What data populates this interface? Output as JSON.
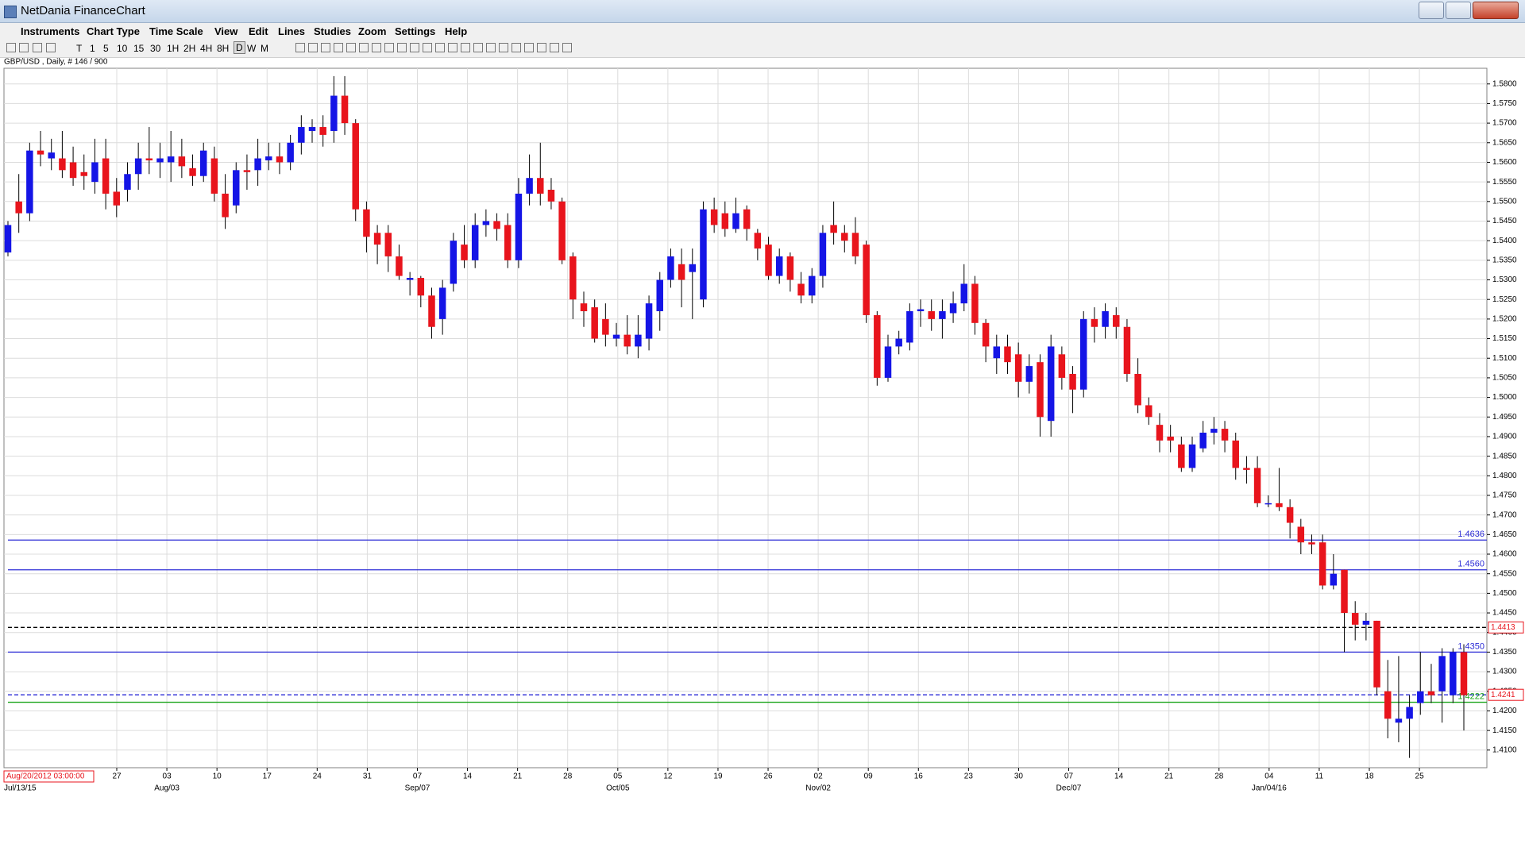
{
  "window": {
    "title": "NetDania FinanceChart"
  },
  "menu": [
    "Instruments",
    "Chart Type",
    "Time Scale",
    "View",
    "Edit",
    "Lines",
    "Studies",
    "Zoom",
    "Settings",
    "Help"
  ],
  "toolbar": {
    "buttons": [
      "T",
      "1",
      "5",
      "10",
      "15",
      "30",
      "1H",
      "2H",
      "4H",
      "8H",
      "D",
      "W",
      "M"
    ],
    "selected": "D"
  },
  "chart_data": {
    "type": "candlestick",
    "instrument_label": "GBP/USD , Daily, # 146 / 900",
    "up_color": "#1515e6",
    "down_color": "#e8141c",
    "wick_color": "#000000",
    "grid": true,
    "ylim": [
      1.4055,
      1.584
    ],
    "yticks": [
      {
        "value": 1.41,
        "label": "1.4100"
      },
      {
        "value": 1.415,
        "label": "1.4150"
      },
      {
        "value": 1.42,
        "label": "1.4200"
      },
      {
        "value": 1.425,
        "label": "1.4250"
      },
      {
        "value": 1.43,
        "label": "1.4300"
      },
      {
        "value": 1.435,
        "label": "1.4350"
      },
      {
        "value": 1.44,
        "label": "1.4400"
      },
      {
        "value": 1.445,
        "label": "1.4450"
      },
      {
        "value": 1.45,
        "label": "1.4500"
      },
      {
        "value": 1.455,
        "label": "1.4550"
      },
      {
        "value": 1.46,
        "label": "1.4600"
      },
      {
        "value": 1.465,
        "label": "1.4650"
      },
      {
        "value": 1.47,
        "label": "1.4700"
      },
      {
        "value": 1.475,
        "label": "1.4750"
      },
      {
        "value": 1.48,
        "label": "1.4800"
      },
      {
        "value": 1.485,
        "label": "1.4850"
      },
      {
        "value": 1.49,
        "label": "1.4900"
      },
      {
        "value": 1.495,
        "label": "1.4950"
      },
      {
        "value": 1.5,
        "label": "1.5000"
      },
      {
        "value": 1.505,
        "label": "1.5050"
      },
      {
        "value": 1.51,
        "label": "1.5100"
      },
      {
        "value": 1.515,
        "label": "1.5150"
      },
      {
        "value": 1.52,
        "label": "1.5200"
      },
      {
        "value": 1.525,
        "label": "1.5250"
      },
      {
        "value": 1.53,
        "label": "1.5300"
      },
      {
        "value": 1.535,
        "label": "1.5350"
      },
      {
        "value": 1.54,
        "label": "1.5400"
      },
      {
        "value": 1.545,
        "label": "1.5450"
      },
      {
        "value": 1.55,
        "label": "1.5500"
      },
      {
        "value": 1.555,
        "label": "1.5550"
      },
      {
        "value": 1.56,
        "label": "1.5600"
      },
      {
        "value": 1.565,
        "label": "1.5650"
      },
      {
        "value": 1.57,
        "label": "1.5700"
      },
      {
        "value": 1.575,
        "label": "1.5750"
      },
      {
        "value": 1.58,
        "label": "1.5800"
      }
    ],
    "cursor_time": "Aug/20/2012 03:00:00",
    "x_day_labels": [
      "27",
      "03",
      "10",
      "17",
      "24",
      "31",
      "07",
      "14",
      "21",
      "28",
      "05",
      "12",
      "19",
      "26",
      "02",
      "09",
      "16",
      "23",
      "30",
      "07",
      "14",
      "21",
      "28",
      "04",
      "11",
      "18",
      "25"
    ],
    "x_start_label": "Jul/13/15",
    "x_month_labels": [
      "Aug/03",
      "Sep/07",
      "Oct/05",
      "Nov/02",
      "Dec/07",
      "Jan/04/16"
    ],
    "hlines": [
      {
        "value": 1.4636,
        "color": "#2b2bd6",
        "style": "solid"
      },
      {
        "value": 1.456,
        "label": "1.4560",
        "color": "#2b2bd6",
        "style": "solid"
      },
      {
        "value": 1.4413,
        "color": "#000000",
        "style": "dashed",
        "tag_color": "#e8141c"
      },
      {
        "value": 1.435,
        "label": "1.4350",
        "color": "#2b2bd6",
        "style": "solid"
      },
      {
        "value": 1.4241,
        "color": "#2b2bd6",
        "style": "dashed",
        "tag_color": "#e8141c"
      },
      {
        "value": 1.4222,
        "color": "#1aa51a",
        "style": "solid"
      }
    ],
    "open": [
      1.537,
      1.55,
      1.547,
      1.563,
      1.561,
      1.561,
      1.56,
      1.5575,
      1.555,
      1.561,
      1.5525,
      1.553,
      1.557,
      1.561,
      1.56,
      1.56,
      1.5615,
      1.5585,
      1.5565,
      1.561,
      1.552,
      1.549,
      1.558,
      1.558,
      1.5605,
      1.5615,
      1.56,
      1.565,
      1.568,
      1.569,
      1.568,
      1.577,
      1.57,
      1.548,
      1.542,
      1.542,
      1.536,
      1.53,
      1.5305,
      1.526,
      1.52,
      1.529,
      1.539,
      1.535,
      1.544,
      1.545,
      1.544,
      1.535,
      1.552,
      1.556,
      1.553,
      1.55,
      1.536,
      1.524,
      1.523,
      1.52,
      1.515,
      1.516,
      1.513,
      1.515,
      1.522,
      1.53,
      1.534,
      1.532,
      1.525,
      1.548,
      1.547,
      1.543,
      1.548,
      1.542,
      1.539,
      1.531,
      1.536,
      1.529,
      1.526,
      1.531,
      1.544,
      1.542,
      1.542,
      1.539,
      1.521,
      1.505,
      1.513,
      1.514,
      1.522,
      1.522,
      1.52,
      1.5215,
      1.524,
      1.529,
      1.519,
      1.51,
      1.513,
      1.511,
      1.504,
      1.509,
      1.494,
      1.511,
      1.506,
      1.502,
      1.52,
      1.518,
      1.521,
      1.518,
      1.506,
      1.498,
      1.493,
      1.49,
      1.488,
      1.482,
      1.487,
      1.491,
      1.492,
      1.489,
      1.482,
      1.482,
      1.473,
      1.473,
      1.472,
      1.467,
      1.463,
      1.463,
      1.452,
      1.456,
      1.445,
      1.442,
      1.443,
      1.425,
      1.417,
      1.418,
      1.422,
      1.425,
      1.425,
      1.424,
      1.435
    ],
    "high": [
      1.545,
      1.557,
      1.565,
      1.568,
      1.566,
      1.568,
      1.564,
      1.562,
      1.566,
      1.566,
      1.556,
      1.56,
      1.565,
      1.569,
      1.565,
      1.568,
      1.566,
      1.562,
      1.565,
      1.564,
      1.557,
      1.56,
      1.562,
      1.566,
      1.565,
      1.565,
      1.567,
      1.572,
      1.571,
      1.572,
      1.582,
      1.582,
      1.571,
      1.55,
      1.544,
      1.544,
      1.539,
      1.532,
      1.531,
      1.528,
      1.53,
      1.542,
      1.544,
      1.547,
      1.548,
      1.547,
      1.547,
      1.556,
      1.562,
      1.565,
      1.556,
      1.551,
      1.537,
      1.527,
      1.525,
      1.524,
      1.519,
      1.521,
      1.521,
      1.526,
      1.532,
      1.538,
      1.538,
      1.538,
      1.55,
      1.551,
      1.55,
      1.551,
      1.549,
      1.543,
      1.541,
      1.538,
      1.537,
      1.532,
      1.533,
      1.544,
      1.55,
      1.544,
      1.546,
      1.54,
      1.522,
      1.516,
      1.517,
      1.524,
      1.525,
      1.525,
      1.525,
      1.527,
      1.534,
      1.531,
      1.52,
      1.516,
      1.516,
      1.514,
      1.511,
      1.511,
      1.516,
      1.513,
      1.508,
      1.522,
      1.523,
      1.524,
      1.523,
      1.52,
      1.51,
      1.5,
      1.496,
      1.493,
      1.49,
      1.49,
      1.494,
      1.495,
      1.494,
      1.491,
      1.485,
      1.485,
      1.475,
      1.482,
      1.474,
      1.469,
      1.465,
      1.465,
      1.46,
      1.456,
      1.448,
      1.445,
      1.443,
      1.433,
      1.434,
      1.424,
      1.435,
      1.432,
      1.436,
      1.436,
      1.437
    ],
    "low": [
      1.536,
      1.542,
      1.545,
      1.559,
      1.558,
      1.556,
      1.554,
      1.553,
      1.552,
      1.548,
      1.546,
      1.55,
      1.553,
      1.557,
      1.556,
      1.555,
      1.556,
      1.554,
      1.555,
      1.55,
      1.543,
      1.547,
      1.553,
      1.554,
      1.558,
      1.557,
      1.558,
      1.562,
      1.565,
      1.564,
      1.565,
      1.567,
      1.545,
      1.537,
      1.534,
      1.532,
      1.53,
      1.526,
      1.523,
      1.515,
      1.516,
      1.527,
      1.533,
      1.533,
      1.541,
      1.54,
      1.533,
      1.533,
      1.549,
      1.549,
      1.548,
      1.534,
      1.52,
      1.518,
      1.514,
      1.513,
      1.513,
      1.511,
      1.51,
      1.512,
      1.517,
      1.528,
      1.523,
      1.52,
      1.523,
      1.542,
      1.541,
      1.542,
      1.54,
      1.535,
      1.53,
      1.529,
      1.527,
      1.524,
      1.524,
      1.528,
      1.539,
      1.537,
      1.534,
      1.519,
      1.503,
      1.504,
      1.511,
      1.512,
      1.518,
      1.517,
      1.515,
      1.519,
      1.522,
      1.516,
      1.509,
      1.506,
      1.506,
      1.5,
      1.501,
      1.49,
      1.49,
      1.502,
      1.496,
      1.5,
      1.514,
      1.515,
      1.515,
      1.504,
      1.496,
      1.493,
      1.486,
      1.486,
      1.481,
      1.481,
      1.486,
      1.488,
      1.486,
      1.479,
      1.478,
      1.472,
      1.472,
      1.471,
      1.464,
      1.46,
      1.46,
      1.451,
      1.451,
      1.435,
      1.438,
      1.438,
      1.424,
      1.413,
      1.412,
      1.408,
      1.419,
      1.422,
      1.417,
      1.422,
      1.415
    ],
    "close": [
      1.544,
      1.547,
      1.563,
      1.562,
      1.5625,
      1.558,
      1.556,
      1.5565,
      1.56,
      1.552,
      1.549,
      1.557,
      1.561,
      1.5605,
      1.561,
      1.5615,
      1.559,
      1.5565,
      1.563,
      1.552,
      1.546,
      1.558,
      1.5575,
      1.561,
      1.5615,
      1.56,
      1.565,
      1.569,
      1.569,
      1.567,
      1.577,
      1.57,
      1.548,
      1.541,
      1.539,
      1.536,
      1.531,
      1.5305,
      1.526,
      1.518,
      1.528,
      1.54,
      1.535,
      1.544,
      1.545,
      1.543,
      1.535,
      1.552,
      1.556,
      1.552,
      1.55,
      1.535,
      1.525,
      1.522,
      1.515,
      1.516,
      1.516,
      1.513,
      1.516,
      1.524,
      1.53,
      1.536,
      1.53,
      1.534,
      1.548,
      1.544,
      1.543,
      1.547,
      1.543,
      1.538,
      1.531,
      1.536,
      1.53,
      1.526,
      1.531,
      1.542,
      1.542,
      1.54,
      1.536,
      1.521,
      1.505,
      1.513,
      1.515,
      1.522,
      1.5225,
      1.52,
      1.522,
      1.524,
      1.529,
      1.519,
      1.513,
      1.513,
      1.509,
      1.504,
      1.508,
      1.495,
      1.513,
      1.505,
      1.502,
      1.52,
      1.518,
      1.522,
      1.518,
      1.506,
      1.498,
      1.495,
      1.489,
      1.489,
      1.482,
      1.488,
      1.491,
      1.492,
      1.489,
      1.482,
      1.4815,
      1.473,
      1.473,
      1.472,
      1.468,
      1.463,
      1.4625,
      1.452,
      1.455,
      1.445,
      1.442,
      1.443,
      1.426,
      1.418,
      1.418,
      1.421,
      1.425,
      1.424,
      1.434,
      1.435,
      1.424
    ]
  }
}
